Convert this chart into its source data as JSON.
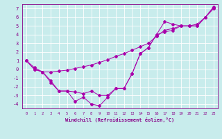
{
  "xlabel": "Windchill (Refroidissement éolien,°C)",
  "background_color": "#c8ecec",
  "grid_color": "#ffffff",
  "line_color": "#aa00aa",
  "x_values": [
    0,
    1,
    2,
    3,
    4,
    5,
    6,
    7,
    8,
    9,
    10,
    11,
    12,
    13,
    14,
    15,
    16,
    17,
    18,
    19,
    20,
    21,
    22,
    23
  ],
  "line1_y": [
    1.0,
    0.2,
    -0.3,
    -0.3,
    -0.2,
    -0.1,
    0.1,
    0.3,
    0.5,
    0.8,
    1.1,
    1.5,
    1.8,
    2.2,
    2.6,
    3.0,
    3.8,
    4.5,
    4.7,
    5.0,
    5.0,
    5.2,
    6.0,
    7.2
  ],
  "line2_y": [
    1.0,
    0.0,
    -0.3,
    -1.3,
    -2.5,
    -2.5,
    -2.6,
    -2.8,
    -2.5,
    -3.0,
    -3.0,
    -2.2,
    -2.2,
    -0.5,
    1.8,
    2.5,
    4.0,
    4.3,
    4.5,
    5.0,
    5.0,
    5.0,
    6.0,
    7.0
  ],
  "line3_y": [
    1.0,
    0.0,
    -0.3,
    -1.5,
    -2.5,
    -2.5,
    -3.7,
    -3.2,
    -4.0,
    -4.2,
    -3.2,
    -2.2,
    -2.2,
    -0.5,
    1.8,
    2.5,
    4.0,
    5.5,
    5.2,
    5.0,
    5.0,
    5.0,
    6.0,
    7.0
  ],
  "ylim": [
    -4.5,
    7.5
  ],
  "xlim": [
    -0.5,
    23.5
  ],
  "yticks": [
    -4,
    -3,
    -2,
    -1,
    0,
    1,
    2,
    3,
    4,
    5,
    6,
    7
  ],
  "xticks": [
    0,
    1,
    2,
    3,
    4,
    5,
    6,
    7,
    8,
    9,
    10,
    11,
    12,
    13,
    14,
    15,
    16,
    17,
    18,
    19,
    20,
    21,
    22,
    23
  ]
}
